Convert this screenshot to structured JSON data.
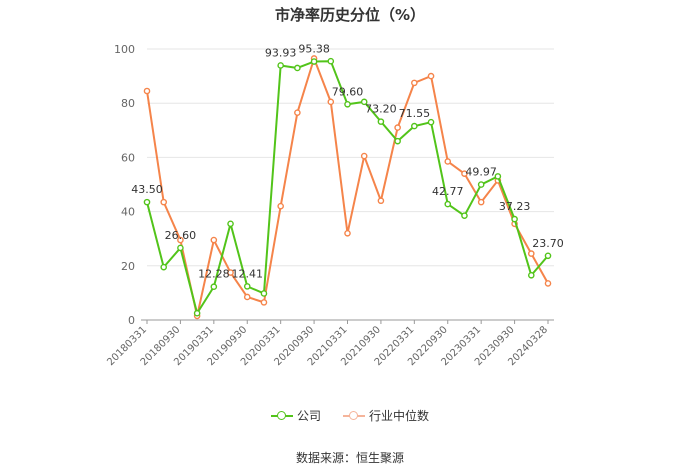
{
  "chart_data": {
    "type": "line",
    "title": "市净率历史分位（%）",
    "source": "数据来源：恒生聚源",
    "ylim": [
      0,
      100
    ],
    "yticks": [
      0,
      20,
      40,
      60,
      80,
      100
    ],
    "grid": true,
    "legend_position": "bottom",
    "tick_labels": [
      "20180331",
      "20180930",
      "20190331",
      "20190930",
      "20200331",
      "20200930",
      "20210331",
      "20210930",
      "20220331",
      "20220930",
      "20230331",
      "20230930",
      "20240328"
    ],
    "x": [
      "20180331",
      "20180630",
      "20180930",
      "20181231",
      "20190331",
      "20190630",
      "20190930",
      "20191231",
      "20200331",
      "20200630",
      "20200930",
      "20201231",
      "20210331",
      "20210630",
      "20210930",
      "20211231",
      "20220331",
      "20220630",
      "20220930",
      "20221231",
      "20230331",
      "20230630",
      "20230930",
      "20231231",
      "20240328"
    ],
    "series": [
      {
        "name": "公司",
        "color": "#52c41a",
        "values": [
          43.5,
          19.5,
          26.6,
          2.5,
          12.28,
          35.5,
          12.41,
          9.8,
          93.93,
          93.0,
          95.38,
          95.5,
          79.6,
          80.5,
          73.2,
          66.0,
          71.55,
          73.0,
          42.77,
          38.5,
          49.97,
          53.0,
          37.23,
          16.5,
          23.7
        ],
        "labels": {
          "0": "43.50",
          "2": "26.60",
          "4": "12.28",
          "6": "12.41",
          "8": "93.93",
          "10": "95.38",
          "12": "79.60",
          "14": "73.20",
          "16": "71.55",
          "18": "42.77",
          "20": "49.97",
          "22": "37.23",
          "24": "23.70"
        }
      },
      {
        "name": "行业中位数",
        "color": "#f5844a",
        "values": [
          84.5,
          43.5,
          29.5,
          1.5,
          29.5,
          17.5,
          8.5,
          6.5,
          42.0,
          76.5,
          96.5,
          80.5,
          32.0,
          60.5,
          44.0,
          71.0,
          87.5,
          90.0,
          58.5,
          54.0,
          43.5,
          51.5,
          35.5,
          24.5,
          13.5
        ]
      }
    ]
  }
}
